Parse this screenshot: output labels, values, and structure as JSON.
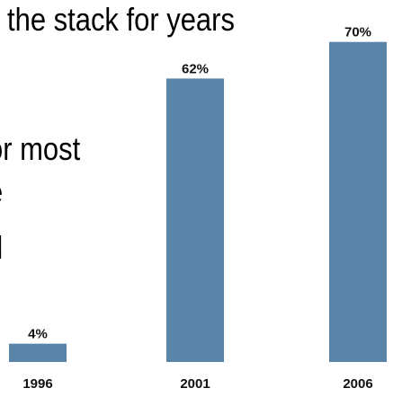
{
  "slide_text": {
    "line_0": "the stack for years",
    "line_1": "or most",
    "line_2": "e",
    "line_3": "d"
  },
  "colors": {
    "bar": "#5b85a8",
    "background": "#ffffff",
    "text": "#000000"
  },
  "chart_data": {
    "type": "bar",
    "categories": [
      "1996",
      "2001",
      "2006"
    ],
    "values": [
      4,
      62,
      70
    ],
    "value_labels": [
      "4%",
      "62%",
      "70%"
    ],
    "title": "",
    "xlabel": "",
    "ylabel": "",
    "ylim": [
      0,
      75
    ],
    "grid": false,
    "legend": "none"
  }
}
